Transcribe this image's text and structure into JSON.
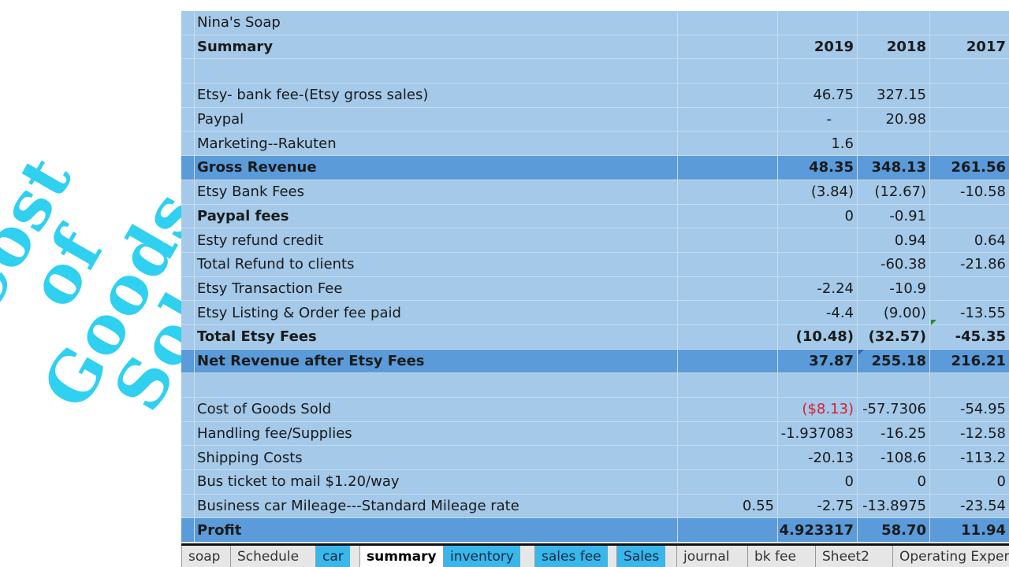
{
  "overlay": {
    "lines": [
      "Cost",
      "of",
      "Goods",
      "Sold"
    ],
    "color": "#2fd0f0"
  },
  "sheet": {
    "company": "Nina's Soap",
    "summary_label": "Summary",
    "years": [
      "2019",
      "2018",
      "2017"
    ],
    "rows": [
      {
        "label": "Etsy- bank fee-(Etsy gross sales)",
        "rate": "",
        "y2019": "46.75",
        "y2018": "327.15",
        "y2017": ""
      },
      {
        "label": "Paypal",
        "rate": "",
        "y2019": "-",
        "y2018": "20.98",
        "y2017": ""
      },
      {
        "label": "Marketing--Rakuten",
        "rate": "",
        "y2019": "1.6",
        "y2018": "",
        "y2017": ""
      },
      {
        "label": "Gross Revenue",
        "rate": "",
        "y2019": "48.35",
        "y2018": "348.13",
        "y2017": "261.56"
      },
      {
        "label": "Etsy Bank Fees",
        "rate": "",
        "y2019": "(3.84)",
        "y2018": "(12.67)",
        "y2017": "-10.58"
      },
      {
        "label": "Paypal fees",
        "rate": "",
        "y2019": "0",
        "y2018": "-0.91",
        "y2017": ""
      },
      {
        "label": "Esty refund credit",
        "rate": "",
        "y2019": "",
        "y2018": "0.94",
        "y2017": "0.64"
      },
      {
        "label": "Total Refund to clients",
        "rate": "",
        "y2019": "",
        "y2018": "-60.38",
        "y2017": "-21.86"
      },
      {
        "label": "Etsy Transaction Fee",
        "rate": "",
        "y2019": "-2.24",
        "y2018": "-10.9",
        "y2017": ""
      },
      {
        "label": "Etsy Listing & Order fee paid",
        "rate": "",
        "y2019": "-4.4",
        "y2018": "(9.00)",
        "y2017": "-13.55"
      },
      {
        "label": "Total Etsy Fees",
        "rate": "",
        "y2019": "(10.48)",
        "y2018": "(32.57)",
        "y2017": "-45.35"
      },
      {
        "label": "Net Revenue after Etsy Fees",
        "rate": "",
        "y2019": "37.87",
        "y2018": "255.18",
        "y2017": "216.21"
      },
      {
        "label": "Cost of Goods Sold",
        "rate": "",
        "y2019": "($8.13)",
        "y2018": "-57.7306",
        "y2017": "-54.95"
      },
      {
        "label": "Handling fee/Supplies",
        "rate": "",
        "y2019": "-1.937083",
        "y2018": "-16.25",
        "y2017": "-12.58"
      },
      {
        "label": "Shipping Costs",
        "rate": "",
        "y2019": "-20.13",
        "y2018": "-108.6",
        "y2017": "-113.2"
      },
      {
        "label": "Bus ticket to mail $1.20/way",
        "rate": "",
        "y2019": "0",
        "y2018": "0",
        "y2017": "0"
      },
      {
        "label": "Business car Mileage---Standard Mileage rate",
        "rate": "0.55",
        "y2019": "-2.75",
        "y2018": "-13.8975",
        "y2017": "-23.54"
      },
      {
        "label": "Profit",
        "rate": "",
        "y2019": "4.923317",
        "y2018": "58.70",
        "y2017": "11.94"
      }
    ],
    "colors": {
      "sheet_bg": "#a4c9e9",
      "highlight_row": "#5b9bd9",
      "negative_red": "#d8202a"
    }
  },
  "tabs": [
    {
      "label": "soap",
      "state": "normal"
    },
    {
      "label": "Schedule",
      "state": "normal"
    },
    {
      "label": "car",
      "state": "blue"
    },
    {
      "label": "summary",
      "state": "active"
    },
    {
      "label": "inventory",
      "state": "blue"
    },
    {
      "label": "sales fee",
      "state": "blue"
    },
    {
      "label": "Sales",
      "state": "blue"
    },
    {
      "label": "journal",
      "state": "normal"
    },
    {
      "label": "bk fee",
      "state": "normal"
    },
    {
      "label": "Sheet2",
      "state": "normal"
    },
    {
      "label": "Operating Expen",
      "state": "normal"
    }
  ]
}
